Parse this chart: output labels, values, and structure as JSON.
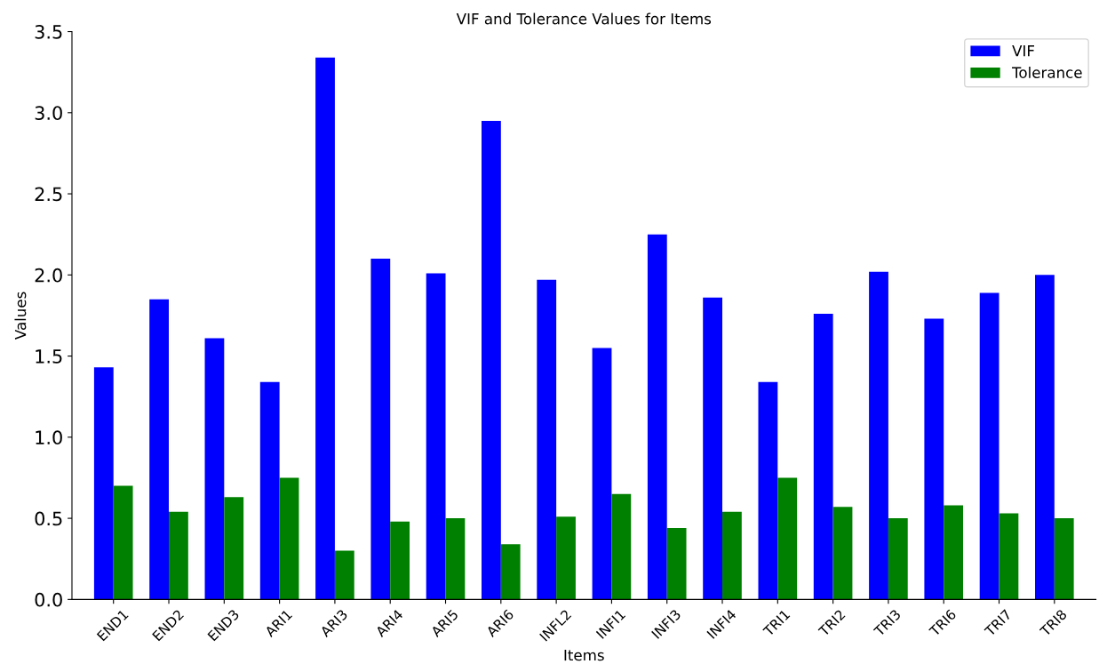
{
  "chart_data": {
    "type": "bar",
    "title": "VIF and Tolerance Values for Items",
    "xlabel": "Items",
    "ylabel": "Values",
    "categories": [
      "END1",
      "END2",
      "END3",
      "ARI1",
      "ARI3",
      "ARI4",
      "ARI5",
      "ARI6",
      "INFL2",
      "INFI1",
      "INFI3",
      "INFI4",
      "TRI1",
      "TRI2",
      "TRI3",
      "TRI6",
      "TRI7",
      "TRI8"
    ],
    "series": [
      {
        "name": "VIF",
        "color": "#0000ff",
        "values": [
          1.43,
          1.85,
          1.61,
          1.34,
          3.34,
          2.1,
          2.01,
          2.95,
          1.97,
          1.55,
          2.25,
          1.86,
          1.34,
          1.76,
          2.02,
          1.73,
          1.89,
          2.0
        ]
      },
      {
        "name": "Tolerance",
        "color": "#008000",
        "values": [
          0.7,
          0.54,
          0.63,
          0.75,
          0.3,
          0.48,
          0.5,
          0.34,
          0.51,
          0.65,
          0.44,
          0.54,
          0.75,
          0.57,
          0.5,
          0.58,
          0.53,
          0.5
        ]
      }
    ],
    "ylim": [
      0,
      3.5
    ],
    "yticks": [
      {
        "value": 0,
        "label": "0.0"
      },
      {
        "value": 0.5,
        "label": "0.5"
      },
      {
        "value": 1,
        "label": "1.0"
      },
      {
        "value": 1.5,
        "label": "1.5"
      },
      {
        "value": 2,
        "label": "2.0"
      },
      {
        "value": 2.5,
        "label": "2.5"
      },
      {
        "value": 3,
        "label": "3.0"
      },
      {
        "value": 3.5,
        "label": "3.5"
      }
    ],
    "grid": false,
    "legend": "top right"
  }
}
